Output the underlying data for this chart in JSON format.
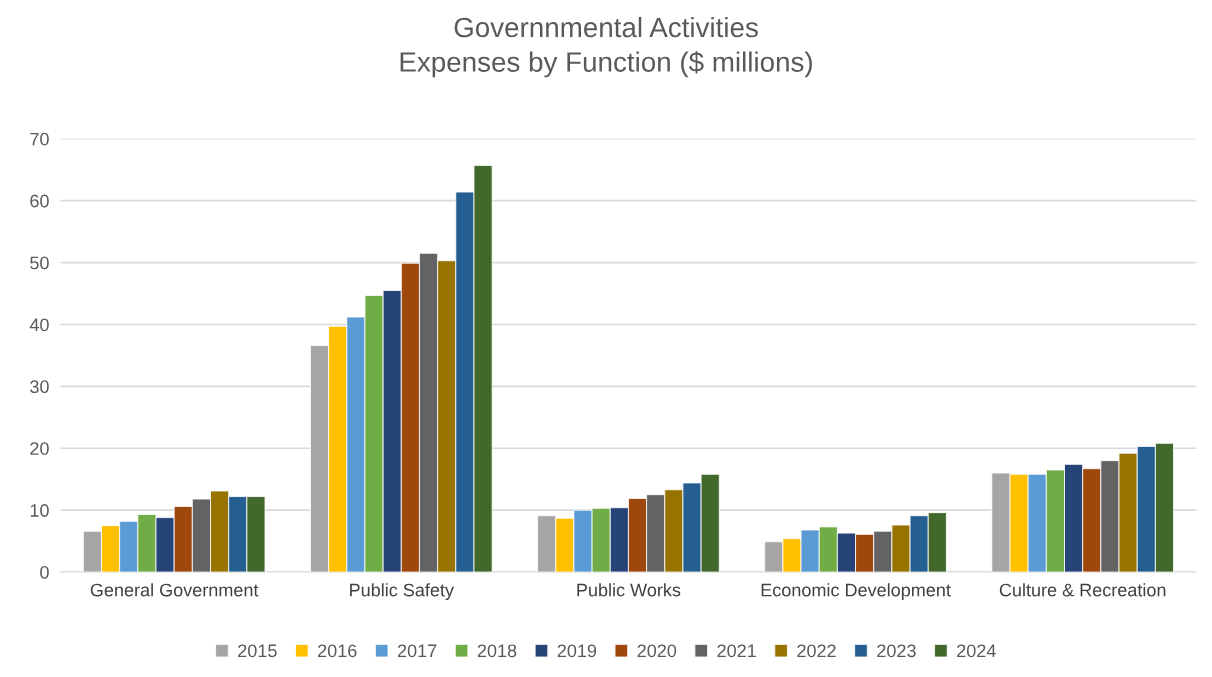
{
  "chart_data": {
    "type": "bar",
    "title": "Governnmental Activities\nExpenses by Function ($ millions)",
    "categories": [
      "General Government",
      "Public Safety",
      "Public Works",
      "Economic Development",
      "Culture & Recreation"
    ],
    "series": [
      {
        "name": "2015",
        "color": "#a5a5a5",
        "values": [
          6.6,
          36.6,
          9.1,
          4.9,
          16.0
        ]
      },
      {
        "name": "2016",
        "color": "#ffc000",
        "values": [
          7.5,
          39.7,
          8.7,
          5.4,
          15.8
        ]
      },
      {
        "name": "2017",
        "color": "#5b9bd5",
        "values": [
          8.2,
          41.2,
          10.0,
          6.8,
          15.8
        ]
      },
      {
        "name": "2018",
        "color": "#70ad47",
        "values": [
          9.3,
          44.7,
          10.3,
          7.3,
          16.5
        ]
      },
      {
        "name": "2019",
        "color": "#264478",
        "values": [
          8.8,
          45.5,
          10.4,
          6.3,
          17.4
        ]
      },
      {
        "name": "2020",
        "color": "#9e480e",
        "values": [
          10.6,
          49.9,
          11.9,
          6.1,
          16.7
        ]
      },
      {
        "name": "2021",
        "color": "#636363",
        "values": [
          11.8,
          51.5,
          12.5,
          6.6,
          18.0
        ]
      },
      {
        "name": "2022",
        "color": "#997300",
        "values": [
          13.1,
          50.3,
          13.3,
          7.6,
          19.2
        ]
      },
      {
        "name": "2023",
        "color": "#255e91",
        "values": [
          12.2,
          61.4,
          14.4,
          9.1,
          20.3
        ]
      },
      {
        "name": "2024",
        "color": "#43682b",
        "values": [
          12.2,
          65.7,
          15.8,
          9.6,
          20.8
        ]
      }
    ],
    "ylim": [
      0,
      70
    ],
    "yticks": [
      0,
      10,
      20,
      30,
      40,
      50,
      60,
      70
    ],
    "grid": "y",
    "legend": "bottom"
  }
}
